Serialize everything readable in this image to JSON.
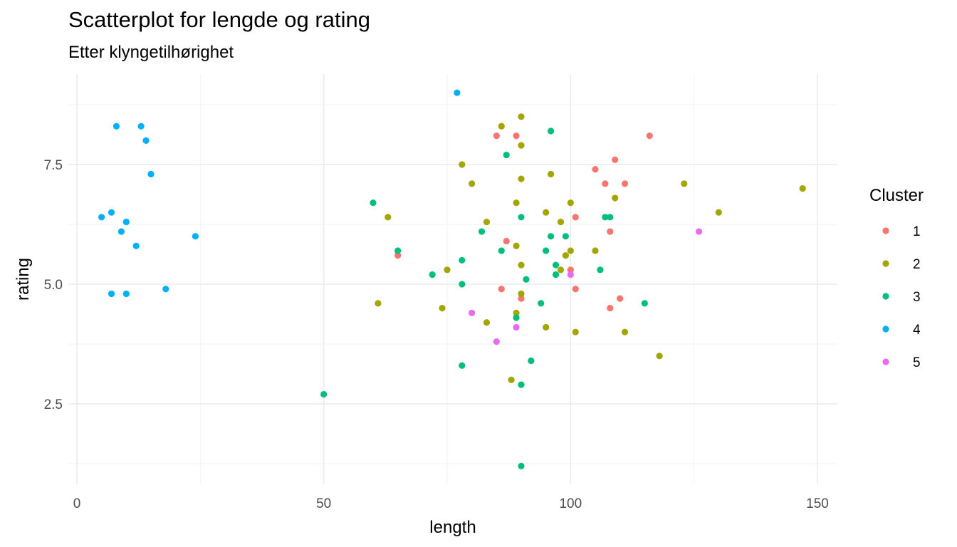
{
  "chart_data": {
    "type": "scatter",
    "title": "Scatterplot for lengde og rating",
    "subtitle": "Etter klyngetilhørighet",
    "xlabel": "length",
    "ylabel": "rating",
    "xlim": [
      -3,
      155
    ],
    "ylim": [
      0.95,
      9.3
    ],
    "x_ticks": [
      0,
      50,
      100,
      150
    ],
    "y_ticks": [
      2.5,
      5.0,
      7.5
    ],
    "y_tick_labels": [
      "2.5",
      "5.0",
      "7.5"
    ],
    "grid": true,
    "legend": {
      "title": "Cluster",
      "position": "right"
    },
    "series": [
      {
        "name": "1",
        "color": "#F8766D",
        "points": [
          [
            65,
            5.6
          ],
          [
            85,
            8.1
          ],
          [
            89,
            8.1
          ],
          [
            87,
            5.9
          ],
          [
            86,
            4.9
          ],
          [
            90,
            4.7
          ],
          [
            100,
            5.3
          ],
          [
            101,
            6.4
          ],
          [
            101,
            4.9
          ],
          [
            105,
            7.4
          ],
          [
            107,
            7.1
          ],
          [
            109,
            7.6
          ],
          [
            111,
            7.1
          ],
          [
            108,
            6.1
          ],
          [
            108,
            4.5
          ],
          [
            110,
            4.7
          ],
          [
            116,
            8.1
          ]
        ]
      },
      {
        "name": "2",
        "color": "#A3A500",
        "points": [
          [
            61,
            4.6
          ],
          [
            63,
            6.4
          ],
          [
            75,
            5.3
          ],
          [
            74,
            4.5
          ],
          [
            78,
            7.5
          ],
          [
            80,
            7.1
          ],
          [
            83,
            6.3
          ],
          [
            83,
            4.2
          ],
          [
            86,
            8.3
          ],
          [
            88,
            3.0
          ],
          [
            89,
            6.7
          ],
          [
            89,
            5.8
          ],
          [
            89,
            4.4
          ],
          [
            90,
            8.5
          ],
          [
            90,
            7.9
          ],
          [
            90,
            7.2
          ],
          [
            90,
            5.4
          ],
          [
            90,
            4.8
          ],
          [
            95,
            6.5
          ],
          [
            95,
            4.1
          ],
          [
            96,
            7.3
          ],
          [
            98,
            6.3
          ],
          [
            98,
            5.3
          ],
          [
            99,
            5.6
          ],
          [
            100,
            6.7
          ],
          [
            100,
            5.7
          ],
          [
            101,
            4.0
          ],
          [
            105,
            5.7
          ],
          [
            109,
            6.8
          ],
          [
            111,
            4.0
          ],
          [
            118,
            3.5
          ],
          [
            123,
            7.1
          ],
          [
            130,
            6.5
          ],
          [
            147,
            7.0
          ]
        ]
      },
      {
        "name": "3",
        "color": "#00BF7D",
        "points": [
          [
            50,
            2.7
          ],
          [
            60,
            6.7
          ],
          [
            65,
            5.7
          ],
          [
            72,
            5.2
          ],
          [
            78,
            5.5
          ],
          [
            78,
            5.0
          ],
          [
            78,
            3.3
          ],
          [
            82,
            6.1
          ],
          [
            86,
            5.7
          ],
          [
            87,
            7.7
          ],
          [
            89,
            4.3
          ],
          [
            90,
            6.4
          ],
          [
            90,
            2.9
          ],
          [
            90,
            1.2
          ],
          [
            91,
            5.1
          ],
          [
            92,
            3.4
          ],
          [
            94,
            4.6
          ],
          [
            95,
            5.7
          ],
          [
            96,
            8.2
          ],
          [
            96,
            6.0
          ],
          [
            97,
            5.4
          ],
          [
            97,
            5.2
          ],
          [
            99,
            6.0
          ],
          [
            106,
            5.3
          ],
          [
            107,
            6.4
          ],
          [
            108,
            6.4
          ],
          [
            115,
            4.6
          ]
        ]
      },
      {
        "name": "4",
        "color": "#00B0F6",
        "points": [
          [
            5,
            6.4
          ],
          [
            7,
            6.5
          ],
          [
            7,
            4.8
          ],
          [
            8,
            8.3
          ],
          [
            9,
            6.1
          ],
          [
            10,
            6.3
          ],
          [
            10,
            4.8
          ],
          [
            12,
            5.8
          ],
          [
            13,
            8.3
          ],
          [
            14,
            8.0
          ],
          [
            15,
            7.3
          ],
          [
            18,
            4.9
          ],
          [
            24,
            6.0
          ],
          [
            77,
            9.0
          ]
        ]
      },
      {
        "name": "5",
        "color": "#E76BF3",
        "points": [
          [
            80,
            4.4
          ],
          [
            85,
            3.8
          ],
          [
            89,
            4.1
          ],
          [
            100,
            5.2
          ],
          [
            126,
            6.1
          ]
        ]
      }
    ]
  }
}
